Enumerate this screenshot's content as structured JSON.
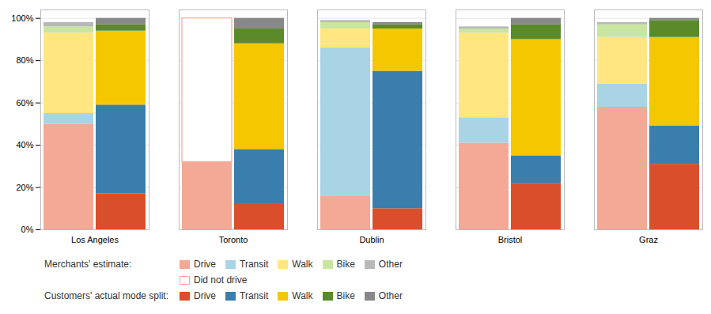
{
  "chart_data": {
    "type": "bar",
    "stacked": true,
    "categories": [
      "Los Angeles",
      "Toronto",
      "Dublin",
      "Bristol",
      "Graz"
    ],
    "groups": [
      {
        "name": "Merchants' estimate:",
        "series": [
          {
            "name": "Drive",
            "color": "#F4A896",
            "values": [
              0.5,
              0.32,
              0.16,
              0.41,
              0.58
            ]
          },
          {
            "name": "Transit",
            "color": "#A8D4E6",
            "values": [
              0.05,
              0.0,
              0.7,
              0.12,
              0.11
            ]
          },
          {
            "name": "Walk",
            "color": "#FFE680",
            "values": [
              0.38,
              0.0,
              0.09,
              0.4,
              0.22
            ]
          },
          {
            "name": "Bike",
            "color": "#C8E6A0",
            "values": [
              0.03,
              0.0,
              0.03,
              0.02,
              0.06
            ]
          },
          {
            "name": "Other",
            "color": "#B8B8B8",
            "values": [
              0.02,
              0.0,
              0.01,
              0.01,
              0.01
            ]
          },
          {
            "name": "Did not drive",
            "color": "#F4A896",
            "type": "outline",
            "values": [
              0.0,
              0.68,
              0.0,
              0.0,
              0.0
            ]
          }
        ]
      },
      {
        "name": "Customers' actual mode split:",
        "series": [
          {
            "name": "Drive",
            "color": "#D94F2B",
            "values": [
              0.17,
              0.12,
              0.1,
              0.22,
              0.31
            ]
          },
          {
            "name": "Transit",
            "color": "#3A7EAD",
            "values": [
              0.42,
              0.26,
              0.65,
              0.13,
              0.18
            ]
          },
          {
            "name": "Walk",
            "color": "#F5C700",
            "values": [
              0.35,
              0.5,
              0.2,
              0.55,
              0.42
            ]
          },
          {
            "name": "Bike",
            "color": "#5A8A2A",
            "values": [
              0.03,
              0.07,
              0.02,
              0.07,
              0.08
            ]
          },
          {
            "name": "Other",
            "color": "#888888",
            "values": [
              0.03,
              0.05,
              0.01,
              0.03,
              0.01
            ]
          }
        ]
      }
    ],
    "ylim": [
      0,
      1.04
    ],
    "yticks": [
      {
        "value": 0.0,
        "label": "0%"
      },
      {
        "value": 0.2,
        "label": "20%"
      },
      {
        "value": 0.4,
        "label": "40%"
      },
      {
        "value": 0.6,
        "label": "60%"
      },
      {
        "value": 0.8,
        "label": "80%"
      },
      {
        "value": 1.0,
        "label": "100%"
      }
    ],
    "grid": true,
    "legend": "bottom"
  }
}
